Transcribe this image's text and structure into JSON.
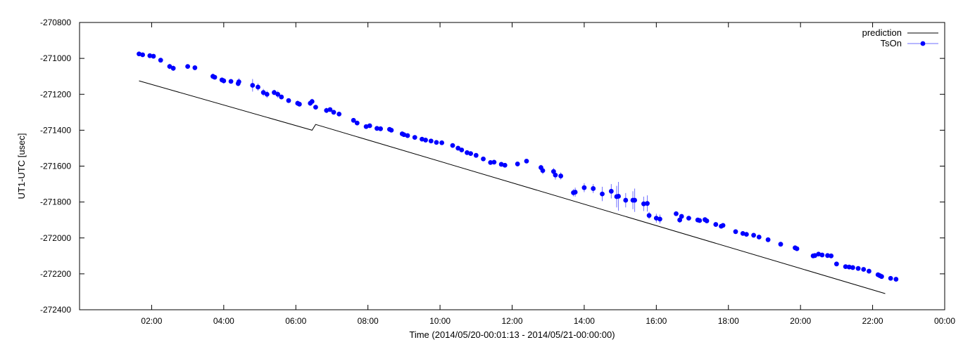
{
  "chart_data": {
    "type": "scatter",
    "xlabel": "Time (2014/05/20-00:01:13 - 2014/05/21-00:00:00)",
    "ylabel": "UT1-UTC [usec]",
    "x_unit": "hours",
    "xlim": [
      0,
      24
    ],
    "ylim": [
      -272400,
      -270800
    ],
    "x_ticks": [
      2,
      4,
      6,
      8,
      10,
      12,
      14,
      16,
      18,
      20,
      22,
      24
    ],
    "x_tick_labels": [
      "02:00",
      "04:00",
      "06:00",
      "08:00",
      "10:00",
      "12:00",
      "14:00",
      "16:00",
      "18:00",
      "20:00",
      "22:00",
      "00:00"
    ],
    "y_ticks": [
      -272400,
      -272200,
      -272000,
      -271800,
      -271600,
      -271400,
      -271200,
      -271000,
      -270800
    ],
    "y_tick_labels": [
      "-272400",
      "-272200",
      "-272000",
      "-271800",
      "-271600",
      "-271400",
      "-271200",
      "-271000",
      "-270800"
    ],
    "grid": false,
    "legend_position": "top-right",
    "colors": {
      "prediction": "#000000",
      "tson": "#0000ff",
      "errorbar": "#6f6fff"
    },
    "series": [
      {
        "name": "prediction",
        "style": "line",
        "points": [
          [
            1.65,
            -271125
          ],
          [
            6.45,
            -271400
          ],
          [
            6.55,
            -271368
          ],
          [
            22.35,
            -272310
          ]
        ]
      },
      {
        "name": "TsOn",
        "style": "points-with-errorbars",
        "points": [
          [
            1.65,
            -270975,
            6
          ],
          [
            1.75,
            -270980,
            6
          ],
          [
            1.95,
            -270985,
            6
          ],
          [
            2.05,
            -270988,
            6
          ],
          [
            2.25,
            -271010,
            8
          ],
          [
            2.5,
            -271045,
            15
          ],
          [
            2.6,
            -271055,
            15
          ],
          [
            3.0,
            -271045,
            10
          ],
          [
            3.2,
            -271052,
            8
          ],
          [
            3.7,
            -271100,
            15
          ],
          [
            3.75,
            -271105,
            10
          ],
          [
            3.95,
            -271120,
            12
          ],
          [
            4.0,
            -271125,
            15
          ],
          [
            4.2,
            -271128,
            12
          ],
          [
            4.4,
            -271140,
            15
          ],
          [
            4.42,
            -271130,
            20
          ],
          [
            4.8,
            -271150,
            35
          ],
          [
            4.95,
            -271160,
            20
          ],
          [
            5.1,
            -271190,
            20
          ],
          [
            5.2,
            -271200,
            20
          ],
          [
            5.4,
            -271190,
            15
          ],
          [
            5.5,
            -271200,
            20
          ],
          [
            5.6,
            -271215,
            12
          ],
          [
            5.8,
            -271235,
            12
          ],
          [
            6.05,
            -271250,
            15
          ],
          [
            6.1,
            -271255,
            12
          ],
          [
            6.4,
            -271250,
            15
          ],
          [
            6.45,
            -271240,
            15
          ],
          [
            6.55,
            -271272,
            12
          ],
          [
            6.85,
            -271290,
            15
          ],
          [
            6.95,
            -271285,
            12
          ],
          [
            7.05,
            -271300,
            10
          ],
          [
            7.2,
            -271310,
            8
          ],
          [
            7.6,
            -271345,
            8
          ],
          [
            7.7,
            -271360,
            10
          ],
          [
            7.95,
            -271380,
            8
          ],
          [
            8.05,
            -271375,
            8
          ],
          [
            8.25,
            -271390,
            6
          ],
          [
            8.35,
            -271392,
            6
          ],
          [
            8.6,
            -271395,
            6
          ],
          [
            8.65,
            -271400,
            6
          ],
          [
            8.95,
            -271420,
            6
          ],
          [
            9.0,
            -271425,
            8
          ],
          [
            9.1,
            -271430,
            6
          ],
          [
            9.3,
            -271440,
            6
          ],
          [
            9.5,
            -271450,
            6
          ],
          [
            9.6,
            -271455,
            6
          ],
          [
            9.75,
            -271460,
            6
          ],
          [
            9.9,
            -271468,
            6
          ],
          [
            10.05,
            -271470,
            6
          ],
          [
            10.35,
            -271485,
            6
          ],
          [
            10.5,
            -271500,
            8
          ],
          [
            10.6,
            -271510,
            6
          ],
          [
            10.75,
            -271525,
            6
          ],
          [
            10.85,
            -271530,
            6
          ],
          [
            11.0,
            -271540,
            6
          ],
          [
            11.2,
            -271560,
            6
          ],
          [
            11.4,
            -271580,
            8
          ],
          [
            11.5,
            -271578,
            10
          ],
          [
            11.7,
            -271590,
            6
          ],
          [
            11.8,
            -271595,
            6
          ],
          [
            12.15,
            -271588,
            10
          ],
          [
            12.4,
            -271572,
            12
          ],
          [
            12.8,
            -271608,
            15
          ],
          [
            12.85,
            -271625,
            20
          ],
          [
            13.15,
            -271630,
            20
          ],
          [
            13.2,
            -271650,
            25
          ],
          [
            13.35,
            -271655,
            20
          ],
          [
            13.7,
            -271748,
            20
          ],
          [
            13.75,
            -271745,
            25
          ],
          [
            14.0,
            -271720,
            25
          ],
          [
            14.25,
            -271725,
            25
          ],
          [
            14.5,
            -271755,
            40
          ],
          [
            14.75,
            -271740,
            40
          ],
          [
            14.9,
            -271770,
            60
          ],
          [
            14.95,
            -271768,
            80
          ],
          [
            15.15,
            -271790,
            40
          ],
          [
            15.35,
            -271790,
            50
          ],
          [
            15.4,
            -271790,
            65
          ],
          [
            15.65,
            -271810,
            40
          ],
          [
            15.75,
            -271808,
            45
          ],
          [
            15.8,
            -271875,
            20
          ],
          [
            16.0,
            -271890,
            25
          ],
          [
            16.1,
            -271895,
            25
          ],
          [
            16.55,
            -271865,
            10
          ],
          [
            16.65,
            -271900,
            15
          ],
          [
            16.7,
            -271880,
            12
          ],
          [
            16.9,
            -271890,
            10
          ],
          [
            17.15,
            -271900,
            10
          ],
          [
            17.2,
            -271903,
            8
          ],
          [
            17.35,
            -271898,
            10
          ],
          [
            17.4,
            -271905,
            8
          ],
          [
            17.65,
            -271925,
            8
          ],
          [
            17.8,
            -271935,
            8
          ],
          [
            17.85,
            -271930,
            8
          ],
          [
            18.2,
            -271965,
            8
          ],
          [
            18.4,
            -271975,
            6
          ],
          [
            18.5,
            -271980,
            6
          ],
          [
            18.7,
            -271985,
            6
          ],
          [
            18.85,
            -271995,
            6
          ],
          [
            19.1,
            -272010,
            6
          ],
          [
            19.45,
            -272035,
            6
          ],
          [
            19.85,
            -272055,
            8
          ],
          [
            19.9,
            -272060,
            8
          ],
          [
            20.35,
            -272100,
            10
          ],
          [
            20.4,
            -272098,
            10
          ],
          [
            20.5,
            -272090,
            12
          ],
          [
            20.6,
            -272095,
            10
          ],
          [
            20.75,
            -272098,
            8
          ],
          [
            20.85,
            -272100,
            8
          ],
          [
            21.0,
            -272145,
            8
          ],
          [
            21.25,
            -272160,
            6
          ],
          [
            21.35,
            -272162,
            6
          ],
          [
            21.45,
            -272165,
            6
          ],
          [
            21.6,
            -272170,
            6
          ],
          [
            21.75,
            -272175,
            6
          ],
          [
            21.9,
            -272185,
            6
          ],
          [
            22.15,
            -272205,
            8
          ],
          [
            22.2,
            -272210,
            6
          ],
          [
            22.25,
            -272215,
            6
          ],
          [
            22.5,
            -272225,
            6
          ],
          [
            22.65,
            -272230,
            6
          ]
        ]
      }
    ]
  }
}
